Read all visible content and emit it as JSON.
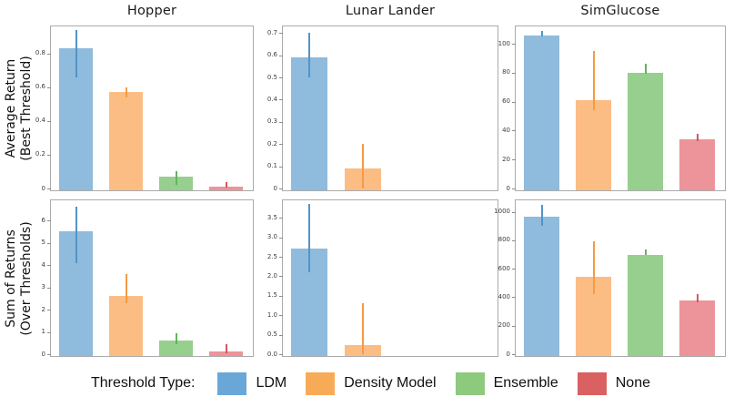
{
  "legend": {
    "label": "Threshold Type:",
    "items": [
      {
        "name": "LDM",
        "color": "#69a7d8",
        "bar_color": "#8fbbdd",
        "err_color": "#5294c7"
      },
      {
        "name": "Density Model",
        "color": "#f8ab57",
        "bar_color": "#fcbd85",
        "err_color": "#f79a42"
      },
      {
        "name": "Ensemble",
        "color": "#8dca7e",
        "bar_color": "#97cf8f",
        "err_color": "#62b45c"
      },
      {
        "name": "None",
        "color": "#d96161",
        "bar_color": "#ec949a",
        "err_color": "#d3565e"
      }
    ]
  },
  "chart_data": {
    "type": "bar",
    "columns": [
      "Hopper",
      "Lunar Lander",
      "SimGlucose"
    ],
    "rows": [
      {
        "ylabel": "Average Return\n(Best Threshold)"
      },
      {
        "ylabel": "Sum of Returns\n(Over Thresholds)"
      }
    ],
    "categories": [
      "LDM",
      "Density Model",
      "Ensemble",
      "None"
    ],
    "legend_position": "bottom",
    "grid": false,
    "panels": [
      {
        "title": "Hopper",
        "row": "Average Return (Best Threshold)",
        "ylim": [
          0,
          0.96
        ],
        "yticks": [
          "0",
          "0.2",
          "0.4",
          "0.6",
          "0.8"
        ],
        "values": [
          0.84,
          0.58,
          0.08,
          0.02
        ],
        "err_low": [
          0.66,
          0.54,
          0.02,
          0.005
        ],
        "err_high": [
          0.94,
          0.6,
          0.1,
          0.04
        ]
      },
      {
        "title": "Lunar Lander",
        "row": "Average Return (Best Threshold)",
        "ylim": [
          0,
          0.73
        ],
        "yticks": [
          "0",
          "0.1",
          "0.2",
          "0.3",
          "0.4",
          "0.5",
          "0.6",
          "0.7"
        ],
        "values": [
          0.6,
          0.1,
          0,
          0
        ],
        "err_low": [
          0.5,
          0.0,
          0,
          0
        ],
        "err_high": [
          0.7,
          0.2,
          0,
          0
        ]
      },
      {
        "title": "SimGlucose",
        "row": "Average Return (Best Threshold)",
        "ylim": [
          0,
          112
        ],
        "yticks": [
          "0",
          "20",
          "40",
          "60",
          "80",
          "100"
        ],
        "values": [
          107,
          62,
          81,
          35
        ],
        "err_low": [
          105,
          54,
          79,
          33
        ],
        "err_high": [
          109,
          95,
          86,
          38
        ]
      },
      {
        "title": "Hopper",
        "row": "Sum of Returns (Over Thresholds)",
        "ylim": [
          0,
          6.9
        ],
        "yticks": [
          "0",
          "1",
          "2",
          "3",
          "4",
          "5",
          "6"
        ],
        "values": [
          5.6,
          2.7,
          0.7,
          0.2
        ],
        "err_low": [
          4.1,
          2.3,
          0.45,
          0.05
        ],
        "err_high": [
          6.6,
          3.6,
          0.95,
          0.45
        ]
      },
      {
        "title": "Lunar Lander",
        "row": "Sum of Returns (Over Thresholds)",
        "ylim": [
          0,
          3.95
        ],
        "yticks": [
          "0.0",
          "0.5",
          "1.0",
          "1.5",
          "2.0",
          "2.5",
          "3.0",
          "3.5"
        ],
        "values": [
          2.75,
          0.28,
          0,
          0
        ],
        "err_low": [
          2.1,
          0.0,
          0,
          0
        ],
        "err_high": [
          3.85,
          1.3,
          0,
          0
        ]
      },
      {
        "title": "SimGlucose",
        "row": "Sum of Returns (Over Thresholds)",
        "ylim": [
          0,
          1080
        ],
        "yticks": [
          "0",
          "200",
          "400",
          "600",
          "800",
          "1000"
        ],
        "values": [
          980,
          555,
          710,
          390
        ],
        "err_low": [
          900,
          420,
          695,
          365
        ],
        "err_high": [
          1050,
          795,
          735,
          420
        ]
      }
    ]
  }
}
